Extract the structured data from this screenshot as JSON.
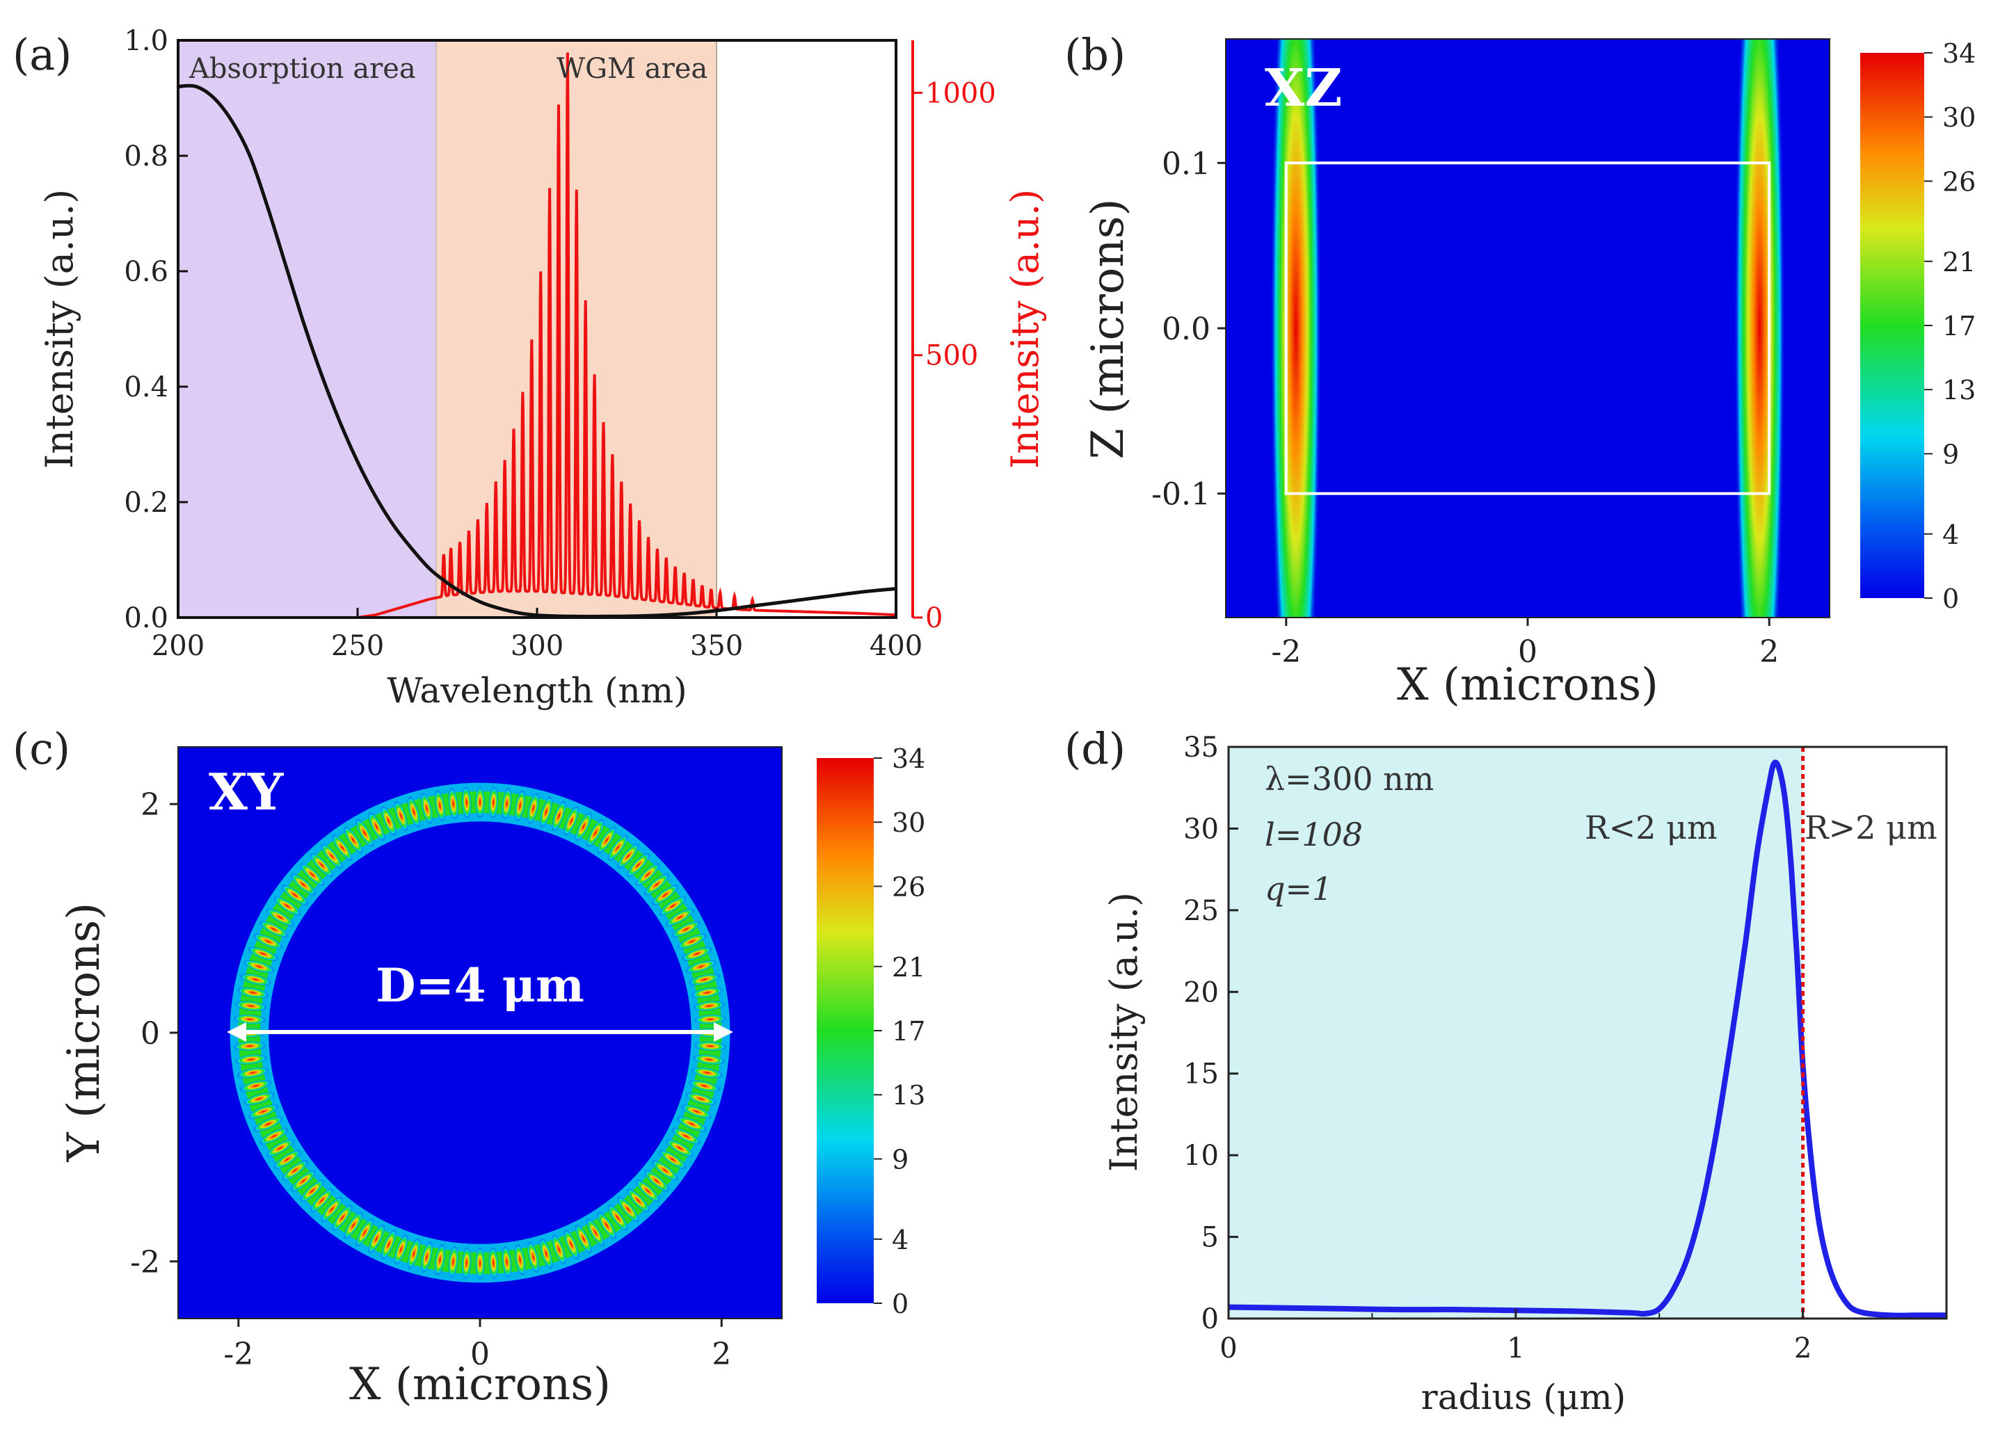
{
  "chart_data": [
    {
      "panel": "(a)",
      "type": "line",
      "xlabel": "Wavelength (nm)",
      "ylabel": "Intensity (a.u.)",
      "y2label": "Intensity (a.u.)",
      "xlim": [
        200,
        400
      ],
      "ylim": [
        0,
        1.0
      ],
      "y2lim": [
        0,
        1100
      ],
      "x_ticks": [
        "200",
        "250",
        "300",
        "350",
        "400"
      ],
      "y_ticks": [
        "0.0",
        "0.2",
        "0.4",
        "0.6",
        "0.8",
        "1.0"
      ],
      "y2_ticks": [
        "0",
        "500",
        "1000"
      ],
      "regions": [
        {
          "label": "Absorption area",
          "from": 200,
          "to": 272,
          "color": "#ddccf3"
        },
        {
          "label": "WGM area",
          "from": 272,
          "to": 350,
          "color": "#f9d8c5"
        }
      ],
      "series": [
        {
          "name": "Absorption",
          "axis": "left",
          "color": "#111111",
          "x": [
            200,
            205,
            210,
            215,
            220,
            225,
            230,
            235,
            240,
            245,
            250,
            255,
            260,
            265,
            270,
            275,
            280,
            285,
            290,
            295,
            300,
            310,
            320,
            330,
            340,
            350,
            360,
            370,
            380,
            390,
            400
          ],
          "y": [
            0.92,
            0.92,
            0.9,
            0.86,
            0.8,
            0.71,
            0.61,
            0.51,
            0.42,
            0.34,
            0.27,
            0.21,
            0.16,
            0.12,
            0.085,
            0.06,
            0.04,
            0.025,
            0.015,
            0.008,
            0.004,
            0.002,
            0.002,
            0.003,
            0.006,
            0.012,
            0.02,
            0.028,
            0.036,
            0.044,
            0.05
          ]
        },
        {
          "name": "WGM emission",
          "axis": "right",
          "color": "#ee1111",
          "envelope": {
            "x": [
              200,
              250,
              255,
              260,
              265,
              270,
              275,
              280,
              285,
              290,
              295,
              300,
              305,
              310,
              315,
              320,
              325,
              330,
              335,
              340,
              345,
              350,
              355,
              360,
              370,
              380,
              390,
              400
            ],
            "y": [
              0,
              0,
              5,
              15,
              25,
              35,
              42,
              45,
              48,
              50,
              50,
              50,
              48,
              46,
              44,
              42,
              38,
              34,
              30,
              26,
              22,
              18,
              16,
              14,
              12,
              10,
              8,
              5
            ]
          },
          "peaks": {
            "x": [
              274,
              276,
              278.5,
              281,
              283.5,
              286,
              288.5,
              291,
              293.5,
              296,
              298.5,
              301,
              303.5,
              306,
              308.5,
              311,
              313.5,
              316,
              318.5,
              321,
              323.5,
              326,
              328.5,
              331,
              333.5,
              336,
              338.5,
              341,
              343.5,
              346,
              348.5,
              351,
              355,
              360
            ],
            "y": [
              80,
              90,
              100,
              120,
              140,
              170,
              210,
              250,
              310,
              380,
              480,
              610,
              770,
              930,
              1030,
              770,
              560,
              420,
              330,
              270,
              220,
              180,
              150,
              120,
              100,
              85,
              70,
              60,
              50,
              40,
              35,
              30,
              25,
              20
            ]
          }
        }
      ]
    },
    {
      "panel": "(b)",
      "type": "heatmap",
      "label": "XZ",
      "xlabel": "X (microns)",
      "ylabel": "Z (microns)",
      "xlim": [
        -2.5,
        2.5
      ],
      "ylim": [
        -0.175,
        0.175
      ],
      "x_ticks": [
        "-2",
        "0",
        "2"
      ],
      "y_ticks": [
        "-0.1",
        "0.0",
        "0.1"
      ],
      "colorbar": {
        "min": 0,
        "max": 34,
        "ticks": [
          "0",
          "4",
          "9",
          "13",
          "17",
          "21",
          "26",
          "30",
          "34"
        ]
      },
      "box": {
        "x": [
          -2,
          2
        ],
        "z": [
          -0.1,
          0.1
        ]
      },
      "hotspots": [
        {
          "x": -1.92,
          "z": 0.0,
          "sigma_x": 0.07,
          "sigma_z": 0.09,
          "peak": 34
        },
        {
          "x": 1.92,
          "z": 0.0,
          "sigma_x": 0.07,
          "sigma_z": 0.09,
          "peak": 34
        }
      ]
    },
    {
      "panel": "(c)",
      "type": "heatmap",
      "label": "XY",
      "xlabel": "X (microns)",
      "ylabel": "Y (microns)",
      "xlim": [
        -2.5,
        2.5
      ],
      "ylim": [
        -2.5,
        2.5
      ],
      "x_ticks": [
        "-2",
        "0",
        "2"
      ],
      "y_ticks": [
        "-2",
        "0",
        "2"
      ],
      "colorbar": {
        "min": 0,
        "max": 34,
        "ticks": [
          "0",
          "4",
          "9",
          "13",
          "17",
          "21",
          "26",
          "30",
          "34"
        ]
      },
      "ring": {
        "radius": 1.91,
        "width": 0.1,
        "lobes": 108,
        "peak": 34
      },
      "annotation": "D=4 μm"
    },
    {
      "panel": "(d)",
      "type": "line",
      "xlabel": "radius (μm)",
      "ylabel": "Intensity (a.u.)",
      "xlim": [
        0,
        2.5
      ],
      "ylim": [
        0,
        35
      ],
      "x_ticks": [
        "0",
        "1",
        "2"
      ],
      "y_ticks": [
        "0",
        "5",
        "10",
        "15",
        "20",
        "25",
        "30",
        "35"
      ],
      "shade_to": 2.0,
      "vline": 2.0,
      "annotations": [
        "λ=300 nm",
        "l=108",
        "q=1",
        "R<2 μm",
        "R>2 μm"
      ],
      "series": [
        {
          "name": "Intensity",
          "color": "#1f22e6",
          "x": [
            0,
            0.2,
            0.4,
            0.6,
            0.8,
            1.0,
            1.2,
            1.4,
            1.45,
            1.5,
            1.55,
            1.6,
            1.65,
            1.7,
            1.75,
            1.8,
            1.84,
            1.88,
            1.9,
            1.92,
            1.94,
            1.96,
            1.98,
            2.0,
            2.03,
            2.06,
            2.1,
            2.15,
            2.2,
            2.3,
            2.4,
            2.5
          ],
          "y": [
            0.7,
            0.65,
            0.6,
            0.55,
            0.55,
            0.5,
            0.45,
            0.35,
            0.3,
            0.6,
            1.8,
            3.8,
            7.0,
            11.5,
            17.0,
            23.0,
            28.5,
            32.5,
            34.0,
            33.5,
            31.5,
            27.5,
            22.0,
            15.5,
            9.5,
            5.5,
            2.7,
            1.0,
            0.4,
            0.2,
            0.2,
            0.2
          ]
        }
      ]
    }
  ]
}
